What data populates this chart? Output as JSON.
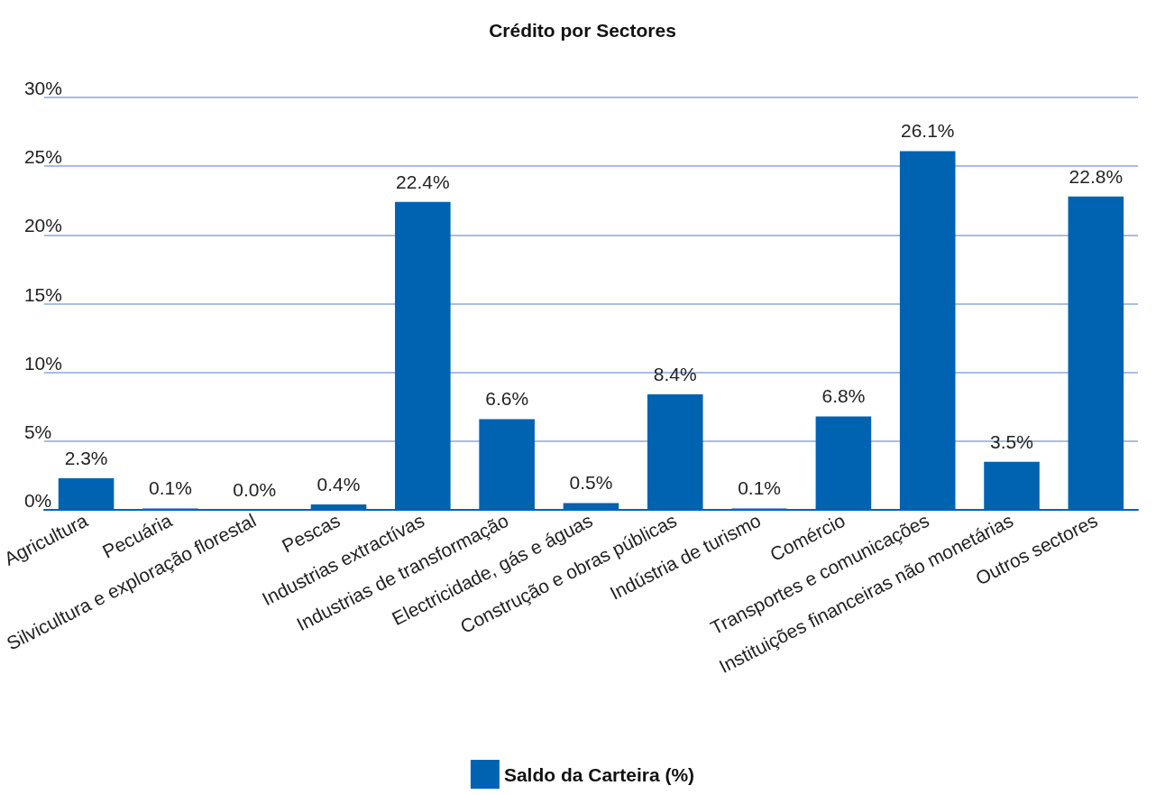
{
  "chart_data": {
    "type": "bar",
    "title": "Crédito por Sectores",
    "categories": [
      "Agricultura",
      "Pecuária",
      "Silvicultura e exploração florestal",
      "Pescas",
      "Industrias extractívas",
      "Industrias de transformação",
      "Electricidade, gás e águas",
      "Construção e obras públicas",
      "Indústria de turismo",
      "Comércio",
      "Transportes e comunicações",
      "Instituições financeiras não monetárias",
      "Outros sectores"
    ],
    "series": [
      {
        "name": "Saldo da Carteira (%)",
        "color": "#0063b1",
        "values": [
          2.3,
          0.1,
          0.0,
          0.4,
          22.4,
          6.6,
          0.5,
          8.4,
          0.1,
          6.8,
          26.1,
          3.5,
          22.8
        ],
        "value_labels": [
          "2.3%",
          "0.1%",
          "0.0%",
          "0.4%",
          "22.4%",
          "6.6%",
          "0.5%",
          "8.4%",
          "0.1%",
          "6.8%",
          "26.1%",
          "3.5%",
          "22.8%"
        ]
      }
    ],
    "ylim": [
      0,
      30
    ],
    "yticks": [
      {
        "value": 0,
        "label": "0%"
      },
      {
        "value": 5,
        "label": "5%"
      },
      {
        "value": 10,
        "label": "10%"
      },
      {
        "value": 15,
        "label": "15%"
      },
      {
        "value": 20,
        "label": "20%"
      },
      {
        "value": 25,
        "label": "25%"
      },
      {
        "value": 30,
        "label": "30%"
      }
    ],
    "grid": "y",
    "legend": "bottom"
  }
}
